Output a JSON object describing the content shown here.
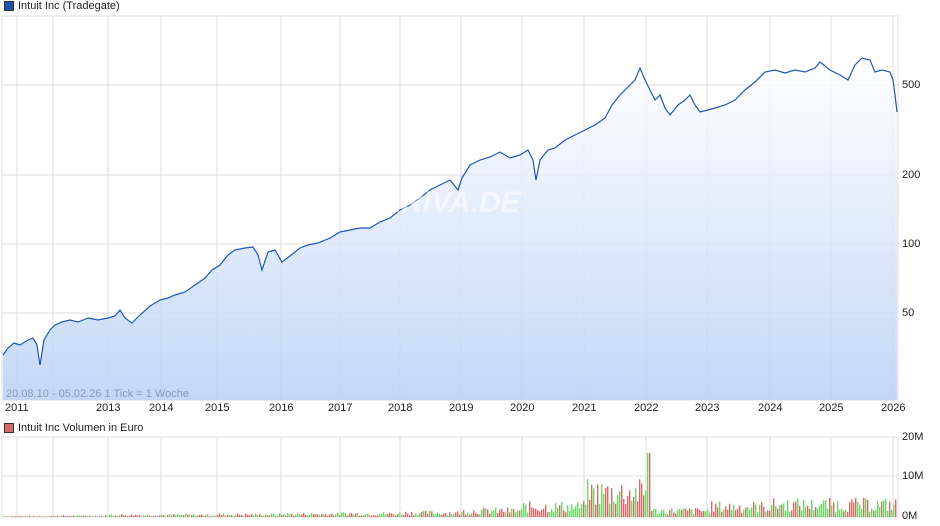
{
  "price_legend": {
    "label": "Intuit Inc (Tradegate)",
    "color": "#1f4fa8"
  },
  "volume_legend": {
    "label": "Intuit Inc Volumen in Euro",
    "color": "#d9534f"
  },
  "range_text": "20.08.10 - 05.02.26   1 Tick = 1 Woche",
  "watermark": "ARIVA.DE",
  "y_axis_price": [
    "500",
    "200",
    "100",
    "50"
  ],
  "y_axis_volume": [
    "20M",
    "10M",
    "0M"
  ],
  "x_axis": [
    "2011",
    "2013",
    "2014",
    "2015",
    "2016",
    "2017",
    "2018",
    "2019",
    "2020",
    "2021",
    "2022",
    "2023",
    "2024",
    "2025",
    "2026"
  ],
  "chart_data": [
    {
      "type": "area",
      "title": "Intuit Inc (Tradegate)",
      "yscale": "log",
      "x": [
        "2010-08",
        "2011-01",
        "2011-08",
        "2012-01",
        "2012-06",
        "2013-01",
        "2013-06",
        "2014-01",
        "2014-06",
        "2015-01",
        "2015-06",
        "2015-09",
        "2016-01",
        "2016-06",
        "2017-01",
        "2017-06",
        "2018-01",
        "2018-06",
        "2019-01",
        "2019-06",
        "2020-01",
        "2020-03",
        "2020-06",
        "2021-01",
        "2021-06",
        "2021-11",
        "2022-01",
        "2022-06",
        "2022-10",
        "2023-01",
        "2023-06",
        "2024-01",
        "2024-06",
        "2025-01",
        "2025-04",
        "2025-06",
        "2025-10",
        "2026-01",
        "2026-02"
      ],
      "values": [
        35,
        36,
        30,
        42,
        46,
        48,
        50,
        55,
        60,
        72,
        90,
        92,
        75,
        88,
        100,
        118,
        145,
        165,
        175,
        230,
        270,
        190,
        260,
        330,
        420,
        600,
        560,
        420,
        420,
        390,
        440,
        560,
        580,
        600,
        520,
        630,
        560,
        540,
        380
      ],
      "ylim": [
        30,
        700
      ],
      "yticks": [
        50,
        100,
        200,
        500
      ],
      "grid": true
    },
    {
      "type": "bar",
      "title": "Intuit Inc Volumen in Euro",
      "x": [
        "2011",
        "2013",
        "2014",
        "2015",
        "2016",
        "2017",
        "2018",
        "2019",
        "2020",
        "2021",
        "2022",
        "2023",
        "2024",
        "2025",
        "2026"
      ],
      "values": [
        0.2,
        0.3,
        0.5,
        0.5,
        0.6,
        0.7,
        0.8,
        1.0,
        1.5,
        2.5,
        6.0,
        1.5,
        2.5,
        3.0,
        3.0
      ],
      "peak": {
        "x": "2021-11",
        "value": 16
      },
      "ylim": [
        0,
        20
      ],
      "yticks": [
        "0M",
        "10M",
        "20M"
      ],
      "series_colors": {
        "up": "#66d966",
        "down": "#d96a6a"
      }
    }
  ]
}
